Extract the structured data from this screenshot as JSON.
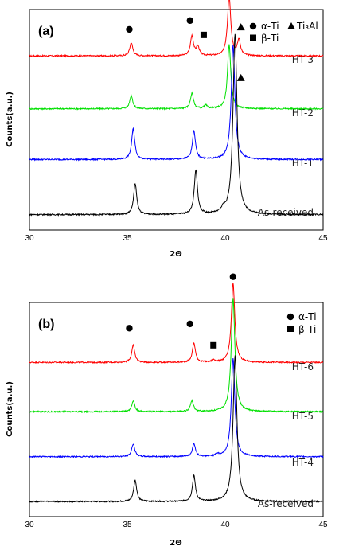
{
  "chart_data": [
    {
      "type": "line",
      "panel_label": "(a)",
      "xlabel": "2Θ",
      "ylabel": "Counts(a.u.)",
      "xlim": [
        30,
        45
      ],
      "xticks": [
        "30",
        "35",
        "40",
        "45"
      ],
      "legend": [
        {
          "marker": "circle",
          "label": "α-Ti"
        },
        {
          "marker": "triangle",
          "label": "Ti₃Al"
        },
        {
          "marker": "square",
          "label": "β-Ti"
        }
      ],
      "legend_position": "top-right",
      "series": [
        {
          "name": "HT-3",
          "color": "#ff0000",
          "baseline": 0.79,
          "peaks": [
            [
              35.2,
              0.06
            ],
            [
              38.3,
              0.09
            ],
            [
              38.6,
              0.04
            ],
            [
              40.2,
              0.27
            ],
            [
              40.7,
              0.07
            ]
          ]
        },
        {
          "name": "HT-2",
          "color": "#00e000",
          "baseline": 0.55,
          "peaks": [
            [
              35.2,
              0.06
            ],
            [
              38.3,
              0.07
            ],
            [
              39.0,
              0.015
            ],
            [
              40.2,
              0.29
            ]
          ]
        },
        {
          "name": "HT-1",
          "color": "#0000ff",
          "baseline": 0.32,
          "peaks": [
            [
              35.3,
              0.14
            ],
            [
              38.4,
              0.13
            ],
            [
              40.4,
              0.52
            ]
          ]
        },
        {
          "name": "As-received",
          "color": "#000000",
          "baseline": 0.07,
          "peaks": [
            [
              35.4,
              0.14
            ],
            [
              38.5,
              0.2
            ],
            [
              39.9,
              0.02
            ],
            [
              40.5,
              0.82
            ]
          ]
        }
      ],
      "markers": [
        {
          "shape": "circle",
          "x": 35.1,
          "y": 0.91
        },
        {
          "shape": "circle",
          "x": 38.2,
          "y": 0.95
        },
        {
          "shape": "square",
          "x": 38.9,
          "y": 0.885
        },
        {
          "shape": "circle",
          "x": 40.2,
          "y": 1.1
        },
        {
          "shape": "triangle",
          "x": 40.8,
          "y": 0.92
        },
        {
          "shape": "triangle",
          "x": 40.8,
          "y": 0.69
        }
      ]
    },
    {
      "type": "line",
      "panel_label": "(b)",
      "xlabel": "2Θ",
      "ylabel": "Counts(a.u.)",
      "xlim": [
        30,
        45
      ],
      "xticks": [
        "30",
        "35",
        "40",
        "45"
      ],
      "legend": [
        {
          "marker": "circle",
          "label": "α-Ti"
        },
        {
          "marker": "square",
          "label": "β-Ti"
        }
      ],
      "legend_position": "top-right",
      "series": [
        {
          "name": "HT-6",
          "color": "#ff0000",
          "baseline": 0.72,
          "peaks": [
            [
              35.3,
              0.08
            ],
            [
              38.4,
              0.09
            ],
            [
              39.4,
              0.01
            ],
            [
              40.4,
              0.37
            ]
          ]
        },
        {
          "name": "HT-5",
          "color": "#00e000",
          "baseline": 0.49,
          "peaks": [
            [
              35.3,
              0.05
            ],
            [
              38.3,
              0.05
            ],
            [
              40.4,
              0.53
            ]
          ]
        },
        {
          "name": "HT-4",
          "color": "#0000ff",
          "baseline": 0.28,
          "peaks": [
            [
              35.3,
              0.06
            ],
            [
              38.4,
              0.06
            ],
            [
              39.6,
              0.01
            ],
            [
              40.4,
              0.46
            ]
          ]
        },
        {
          "name": "As-received",
          "color": "#000000",
          "baseline": 0.07,
          "peaks": [
            [
              35.4,
              0.1
            ],
            [
              38.4,
              0.12
            ],
            [
              40.5,
              0.68
            ]
          ]
        }
      ],
      "markers": [
        {
          "shape": "circle",
          "x": 35.1,
          "y": 0.88
        },
        {
          "shape": "circle",
          "x": 38.2,
          "y": 0.9
        },
        {
          "shape": "square",
          "x": 39.4,
          "y": 0.8
        },
        {
          "shape": "circle",
          "x": 40.4,
          "y": 1.12
        }
      ]
    }
  ]
}
